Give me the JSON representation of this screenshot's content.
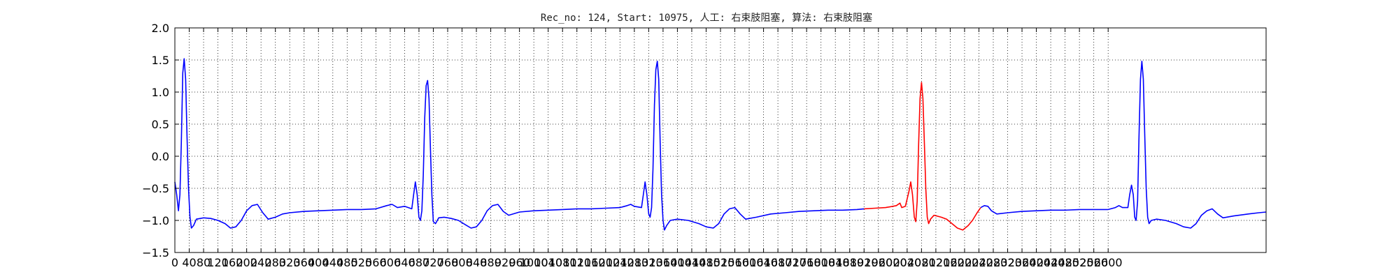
{
  "chart_data": {
    "type": "line",
    "title": "Rec_no: 124, Start: 10975, 人工: 右束肢阻塞, 算法: 右束肢阻塞",
    "xlabel": "",
    "ylabel": "",
    "xlim": [
      0,
      3040
    ],
    "ylim": [
      -1.5,
      2.0
    ],
    "grid": true,
    "grid_style": "dotted",
    "y_ticks": [
      "2.0",
      "1.5",
      "1.0",
      "0.5",
      "0.0",
      "−0.5",
      "−1.0",
      "−1.5"
    ],
    "y_tick_values": [
      2.0,
      1.5,
      1.0,
      0.5,
      0.0,
      -0.5,
      -1.0,
      -1.5
    ],
    "x_ticks": [
      "0",
      "40",
      "80",
      "120",
      "160",
      "200",
      "240",
      "280",
      "320",
      "360",
      "400",
      "440",
      "480",
      "520",
      "560",
      "600",
      "640",
      "680",
      "720",
      "760",
      "800",
      "840",
      "880",
      "920",
      "960",
      "1000",
      "1040",
      "1080",
      "1120",
      "1160",
      "1200",
      "1240",
      "1280",
      "1320",
      "1360",
      "1400",
      "1440",
      "1480",
      "1520",
      "1560",
      "1600",
      "1640",
      "1680",
      "1720",
      "1760",
      "1800",
      "1840",
      "1880",
      "1920",
      "1960",
      "2000",
      "2040",
      "2080",
      "2120",
      "2160",
      "2200",
      "2240",
      "2280",
      "2320",
      "2360",
      "2400",
      "2440",
      "2480",
      "2520",
      "2560",
      "2600"
    ],
    "x_tick_values": [
      0,
      40,
      80,
      120,
      160,
      200,
      240,
      280,
      320,
      360,
      400,
      440,
      480,
      520,
      560,
      600,
      640,
      680,
      720,
      760,
      800,
      840,
      880,
      920,
      960,
      1000,
      1040,
      1080,
      1120,
      1160,
      1200,
      1240,
      1280,
      1320,
      1360,
      1400,
      1440,
      1480,
      1520,
      1560,
      1600,
      1640,
      1680,
      1720,
      1760,
      1800,
      1840,
      1880,
      1920,
      1960,
      2000,
      2040,
      2080,
      2120,
      2160,
      2200,
      2240,
      2280,
      2320,
      2360,
      2400,
      2440,
      2480,
      2520,
      2560,
      2600
    ],
    "series": [
      {
        "color": "#0000ff",
        "points": [
          [
            0,
            -0.4
          ],
          [
            5,
            -0.6
          ],
          [
            10,
            -0.85
          ],
          [
            14,
            -0.6
          ],
          [
            18,
            0.2
          ],
          [
            22,
            1.3
          ],
          [
            26,
            1.52
          ],
          [
            30,
            1.2
          ],
          [
            34,
            0.3
          ],
          [
            38,
            -0.5
          ],
          [
            42,
            -0.95
          ],
          [
            46,
            -1.12
          ],
          [
            52,
            -1.08
          ],
          [
            60,
            -0.98
          ],
          [
            80,
            -0.96
          ],
          [
            100,
            -0.97
          ],
          [
            120,
            -1.0
          ],
          [
            140,
            -1.05
          ],
          [
            155,
            -1.12
          ],
          [
            170,
            -1.1
          ],
          [
            185,
            -1.0
          ],
          [
            200,
            -0.85
          ],
          [
            215,
            -0.77
          ],
          [
            230,
            -0.75
          ],
          [
            245,
            -0.88
          ],
          [
            260,
            -0.98
          ],
          [
            280,
            -0.95
          ],
          [
            300,
            -0.9
          ],
          [
            320,
            -0.88
          ],
          [
            360,
            -0.86
          ],
          [
            400,
            -0.85
          ],
          [
            440,
            -0.84
          ],
          [
            480,
            -0.83
          ],
          [
            520,
            -0.83
          ],
          [
            560,
            -0.82
          ],
          [
            590,
            -0.77
          ],
          [
            605,
            -0.75
          ],
          [
            620,
            -0.8
          ],
          [
            640,
            -0.78
          ],
          [
            660,
            -0.82
          ],
          [
            665,
            -0.6
          ],
          [
            670,
            -0.4
          ],
          [
            675,
            -0.6
          ],
          [
            680,
            -0.95
          ],
          [
            684,
            -1.0
          ],
          [
            688,
            -0.85
          ],
          [
            692,
            -0.3
          ],
          [
            696,
            0.6
          ],
          [
            700,
            1.1
          ],
          [
            704,
            1.18
          ],
          [
            708,
            0.9
          ],
          [
            712,
            0.1
          ],
          [
            716,
            -0.6
          ],
          [
            720,
            -1.02
          ],
          [
            726,
            -1.05
          ],
          [
            735,
            -0.96
          ],
          [
            750,
            -0.95
          ],
          [
            770,
            -0.97
          ],
          [
            790,
            -1.0
          ],
          [
            810,
            -1.07
          ],
          [
            825,
            -1.12
          ],
          [
            840,
            -1.1
          ],
          [
            855,
            -1.0
          ],
          [
            870,
            -0.85
          ],
          [
            885,
            -0.77
          ],
          [
            900,
            -0.75
          ],
          [
            915,
            -0.86
          ],
          [
            930,
            -0.92
          ],
          [
            960,
            -0.87
          ],
          [
            1000,
            -0.85
          ],
          [
            1040,
            -0.84
          ],
          [
            1080,
            -0.83
          ],
          [
            1120,
            -0.82
          ],
          [
            1160,
            -0.82
          ],
          [
            1200,
            -0.81
          ],
          [
            1240,
            -0.8
          ],
          [
            1260,
            -0.77
          ],
          [
            1270,
            -0.75
          ],
          [
            1280,
            -0.78
          ],
          [
            1300,
            -0.8
          ],
          [
            1305,
            -0.6
          ],
          [
            1310,
            -0.4
          ],
          [
            1315,
            -0.6
          ],
          [
            1320,
            -0.9
          ],
          [
            1324,
            -0.95
          ],
          [
            1328,
            -0.8
          ],
          [
            1332,
            -0.2
          ],
          [
            1336,
            0.8
          ],
          [
            1340,
            1.35
          ],
          [
            1344,
            1.48
          ],
          [
            1348,
            1.2
          ],
          [
            1352,
            0.2
          ],
          [
            1356,
            -0.6
          ],
          [
            1360,
            -1.0
          ],
          [
            1364,
            -1.15
          ],
          [
            1370,
            -1.08
          ],
          [
            1380,
            -1.0
          ],
          [
            1400,
            -0.98
          ],
          [
            1430,
            -1.0
          ],
          [
            1460,
            -1.05
          ],
          [
            1480,
            -1.1
          ],
          [
            1500,
            -1.12
          ],
          [
            1515,
            -1.05
          ],
          [
            1530,
            -0.9
          ],
          [
            1545,
            -0.82
          ],
          [
            1560,
            -0.8
          ],
          [
            1575,
            -0.9
          ],
          [
            1590,
            -0.98
          ],
          [
            1620,
            -0.95
          ],
          [
            1660,
            -0.9
          ],
          [
            1700,
            -0.88
          ],
          [
            1740,
            -0.86
          ],
          [
            1780,
            -0.85
          ],
          [
            1820,
            -0.84
          ],
          [
            1860,
            -0.84
          ],
          [
            1900,
            -0.83
          ],
          [
            1920,
            -0.82
          ]
        ]
      },
      {
        "color": "#ff0000",
        "points": [
          [
            1920,
            -0.82
          ],
          [
            1950,
            -0.81
          ],
          [
            1980,
            -0.8
          ],
          [
            2000,
            -0.78
          ],
          [
            2010,
            -0.77
          ],
          [
            2020,
            -0.73
          ],
          [
            2025,
            -0.8
          ],
          [
            2035,
            -0.78
          ],
          [
            2045,
            -0.55
          ],
          [
            2050,
            -0.4
          ],
          [
            2055,
            -0.6
          ],
          [
            2060,
            -0.95
          ],
          [
            2064,
            -1.02
          ],
          [
            2068,
            -0.7
          ],
          [
            2072,
            0.2
          ],
          [
            2076,
            0.9
          ],
          [
            2080,
            1.15
          ],
          [
            2084,
            0.9
          ],
          [
            2088,
            0.2
          ],
          [
            2092,
            -0.5
          ],
          [
            2096,
            -0.95
          ],
          [
            2100,
            -1.05
          ],
          [
            2105,
            -0.98
          ],
          [
            2115,
            -0.92
          ],
          [
            2135,
            -0.95
          ],
          [
            2150,
            -0.98
          ],
          [
            2165,
            -1.05
          ],
          [
            2180,
            -1.12
          ],
          [
            2195,
            -1.15
          ],
          [
            2210,
            -1.08
          ],
          [
            2222,
            -1.0
          ],
          [
            2235,
            -0.88
          ],
          [
            2245,
            -0.8
          ]
        ]
      },
      {
        "color": "#0000ff",
        "points": [
          [
            2245,
            -0.8
          ],
          [
            2255,
            -0.77
          ],
          [
            2265,
            -0.78
          ],
          [
            2275,
            -0.85
          ],
          [
            2290,
            -0.9
          ],
          [
            2320,
            -0.88
          ],
          [
            2360,
            -0.86
          ],
          [
            2400,
            -0.85
          ],
          [
            2440,
            -0.84
          ],
          [
            2480,
            -0.84
          ],
          [
            2520,
            -0.83
          ],
          [
            2560,
            -0.83
          ],
          [
            2600,
            -0.83
          ],
          [
            2620,
            -0.8
          ],
          [
            2630,
            -0.77
          ],
          [
            2640,
            -0.8
          ],
          [
            2655,
            -0.8
          ],
          [
            2660,
            -0.6
          ],
          [
            2665,
            -0.45
          ],
          [
            2670,
            -0.6
          ],
          [
            2674,
            -0.95
          ],
          [
            2678,
            -1.0
          ],
          [
            2682,
            -0.7
          ],
          [
            2686,
            0.3
          ],
          [
            2690,
            1.2
          ],
          [
            2694,
            1.48
          ],
          [
            2698,
            1.2
          ],
          [
            2702,
            0.3
          ],
          [
            2706,
            -0.5
          ],
          [
            2710,
            -0.95
          ],
          [
            2714,
            -1.05
          ],
          [
            2720,
            -1.0
          ],
          [
            2735,
            -0.98
          ],
          [
            2760,
            -1.0
          ],
          [
            2790,
            -1.05
          ],
          [
            2810,
            -1.1
          ],
          [
            2830,
            -1.12
          ],
          [
            2845,
            -1.05
          ],
          [
            2860,
            -0.92
          ],
          [
            2875,
            -0.85
          ],
          [
            2890,
            -0.82
          ],
          [
            2905,
            -0.9
          ],
          [
            2920,
            -0.96
          ],
          [
            2950,
            -0.93
          ],
          [
            2990,
            -0.9
          ],
          [
            3020,
            -0.88
          ],
          [
            3040,
            -0.87
          ]
        ]
      }
    ]
  }
}
